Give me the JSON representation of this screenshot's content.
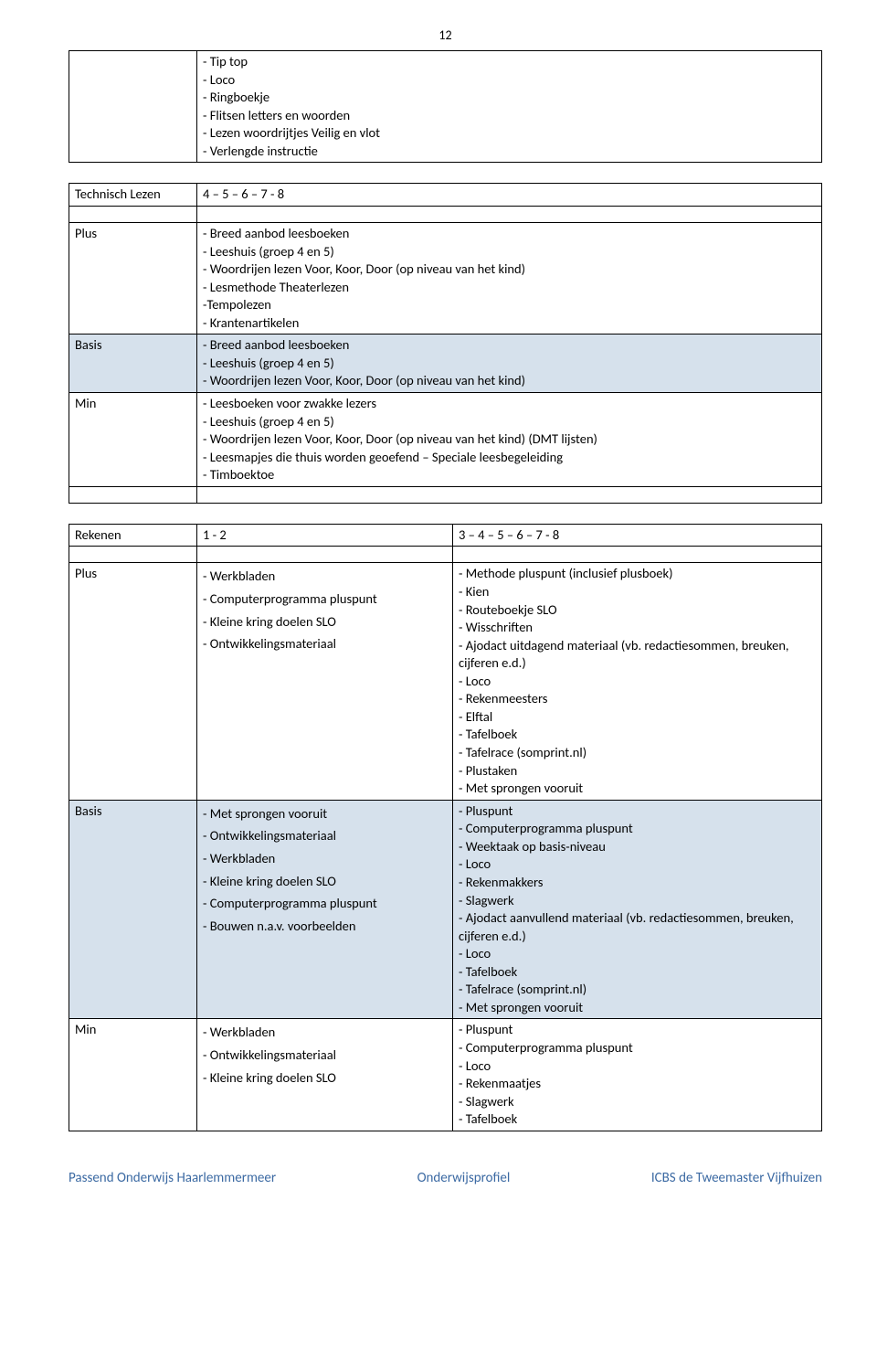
{
  "page_number": "12",
  "table1": {
    "col0": "",
    "items": [
      "- Tip top",
      "- Loco",
      "- Ringboekje",
      "- Flitsen letters en woorden",
      "- Lezen woordrijtjes Veilig en vlot",
      "- Verlengde instructie"
    ]
  },
  "table2": {
    "header_label": "Technisch Lezen",
    "header_value": "4 – 5 – 6 – 7 - 8",
    "rows": [
      {
        "label": "Plus",
        "shaded": false,
        "items": [
          "- Breed aanbod leesboeken",
          "- Leeshuis (groep 4 en 5)",
          "- Woordrijen lezen Voor, Koor, Door (op niveau van het kind)",
          "- Lesmethode Theaterlezen",
          "-Tempolezen",
          "- Krantenartikelen"
        ]
      },
      {
        "label": "Basis",
        "shaded": true,
        "items": [
          "- Breed aanbod leesboeken",
          "- Leeshuis (groep 4 en 5)",
          "- Woordrijen lezen Voor, Koor, Door (op niveau van het kind)"
        ]
      },
      {
        "label": "Min",
        "shaded": false,
        "items": [
          "- Leesboeken voor zwakke lezers",
          "- Leeshuis (groep 4 en 5)",
          "- Woordrijen lezen Voor, Koor, Door (op niveau van het kind) (DMT lijsten)",
          "- Leesmapjes die thuis worden geoefend – Speciale leesbegeleiding",
          "- Timboektoe"
        ]
      }
    ]
  },
  "table3": {
    "header_label": "Rekenen",
    "header_a": "1 - 2",
    "header_b": "3 – 4 – 5 – 6 – 7 - 8",
    "rows": [
      {
        "label": "Plus",
        "shaded": false,
        "col_a": [
          "- Werkbladen",
          "- Computerprogramma pluspunt",
          "- Kleine kring doelen SLO",
          "- Ontwikkelingsmateriaal"
        ],
        "col_b": [
          "- Methode pluspunt (inclusief plusboek)",
          "- Kien",
          "- Routeboekje SLO",
          "- Wisschriften",
          "- Ajodact uitdagend materiaal (vb. redactiesommen, breuken, cijferen e.d.)",
          "- Loco",
          "- Rekenmeesters",
          "- Elftal",
          "- Tafelboek",
          "- Tafelrace (somprint.nl)",
          "- Plustaken",
          "- Met sprongen vooruit"
        ]
      },
      {
        "label": "Basis",
        "shaded": true,
        "col_a": [
          "- Met sprongen vooruit",
          "- Ontwikkelingsmateriaal",
          "- Werkbladen",
          "- Kleine kring doelen SLO",
          "- Computerprogramma pluspunt",
          "- Bouwen n.a.v. voorbeelden"
        ],
        "col_b": [
          "- Pluspunt",
          "- Computerprogramma pluspunt",
          "- Weektaak op basis-niveau",
          "- Loco",
          "- Rekenmakkers",
          "- Slagwerk",
          "- Ajodact aanvullend materiaal (vb. redactiesommen, breuken, cijferen e.d.)",
          "- Loco",
          "- Tafelboek",
          "- Tafelrace (somprint.nl)",
          "- Met sprongen vooruit"
        ]
      },
      {
        "label": "Min",
        "shaded": false,
        "col_a": [
          "- Werkbladen",
          "- Ontwikkelingsmateriaal",
          "- Kleine kring doelen SLO"
        ],
        "col_b": [
          "- Pluspunt",
          "- Computerprogramma pluspunt",
          "- Loco",
          "- Rekenmaatjes",
          "- Slagwerk",
          "- Tafelboek"
        ]
      }
    ]
  },
  "footer": {
    "left": "Passend Onderwijs Haarlemmermeer",
    "center": "Onderwijsprofiel",
    "right": "ICBS de Tweemaster Vijfhuizen"
  }
}
